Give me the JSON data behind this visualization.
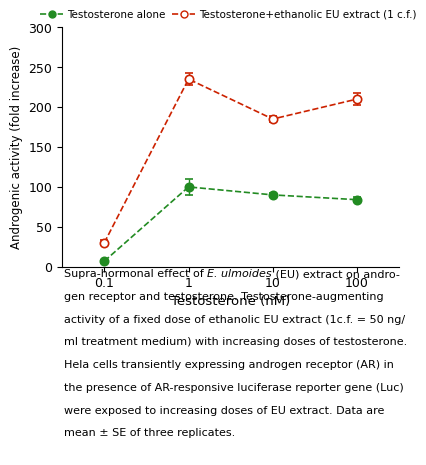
{
  "x_positions": [
    0,
    1,
    2,
    3
  ],
  "x_labels": [
    "0.1",
    "1",
    "10",
    "100"
  ],
  "xlabel": "Testosterone (nM)",
  "ylabel": "Androgenic activity (fold increase)",
  "ylim": [
    0,
    300
  ],
  "yticks": [
    0,
    50,
    100,
    150,
    200,
    250,
    300
  ],
  "green_y": [
    7,
    100,
    90,
    84
  ],
  "green_yerr": [
    2,
    10,
    3,
    3
  ],
  "red_y": [
    30,
    235,
    185,
    210
  ],
  "red_yerr": [
    3,
    8,
    4,
    8
  ],
  "green_color": "#228B22",
  "red_color": "#CC2200",
  "legend_green": "Testosterone alone",
  "legend_red": "Testosterone+ethanolic EU extract (1 c.f.)",
  "caption_lines": [
    [
      "normal",
      "Supra-hormonal effect of ",
      "italic",
      "E. ulmoides",
      "normal",
      " (EU) extract on andro-"
    ],
    [
      "normal",
      "gen receptor and testosterone. Testosterone-augmenting"
    ],
    [
      "normal",
      "activity of a fixed dose of ethanolic EU extract (1c.f. = 50 ng/"
    ],
    [
      "normal",
      "ml treatment medium) with increasing doses of testosterone."
    ],
    [
      "normal",
      "Hela cells transiently expressing androgen receptor (AR) in"
    ],
    [
      "normal",
      "the presence of AR-responsive luciferase reporter gene (Luc)"
    ],
    [
      "normal",
      "were exposed to increasing doses of EU extract. Data are"
    ],
    [
      "normal",
      "mean ± SE of three replicates."
    ]
  ],
  "background_color": "#ffffff"
}
